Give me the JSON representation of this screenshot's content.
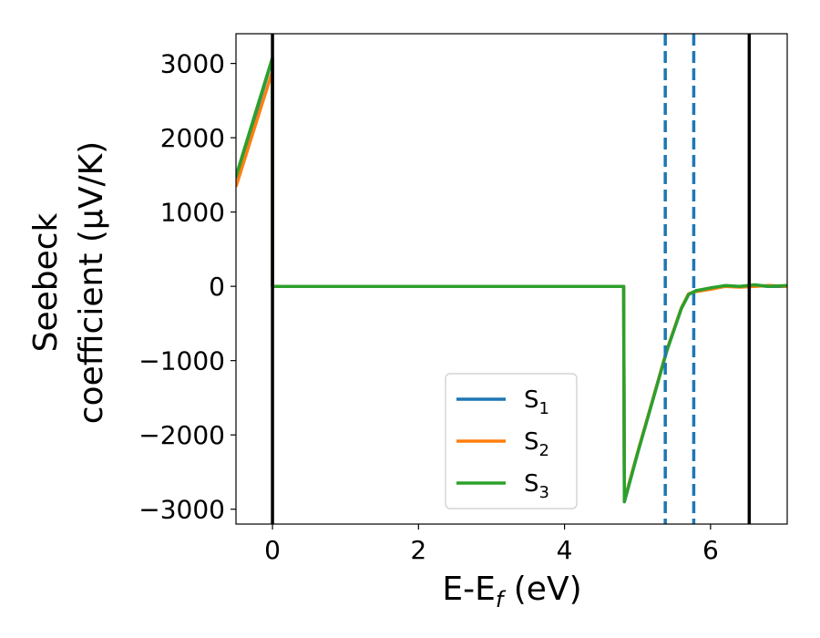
{
  "chart_data": {
    "type": "line",
    "xlabel": "E-E",
    "xlabel_sub": "f",
    "xlabel_unit": " (eV)",
    "ylabel_line1": "Seebeck",
    "ylabel_line2": "coefficient  (μV/K)",
    "xlim": [
      -0.5,
      7.05
    ],
    "ylim": [
      -3200,
      3400
    ],
    "xticks": [
      0,
      2,
      4,
      6
    ],
    "xtick_labels": [
      "0",
      "2",
      "4",
      "6"
    ],
    "yticks": [
      -3000,
      -2000,
      -1000,
      0,
      1000,
      2000,
      3000
    ],
    "ytick_labels": [
      "−3000",
      "−2000",
      "−1000",
      "0",
      "1000",
      "2000",
      "3000"
    ],
    "vlines_solid": [
      0.0,
      6.53
    ],
    "vlines_dashed": [
      5.38,
      5.77
    ],
    "legend_position": "lower-center",
    "series": [
      {
        "name": "S",
        "name_sub": "1",
        "color": "#1f77b4",
        "x": [
          -0.5,
          -0.25,
          0.0,
          0.0,
          0.5,
          1.0,
          2.0,
          3.0,
          4.0,
          4.8,
          4.81,
          4.82,
          5.0,
          5.2,
          5.4,
          5.6,
          5.7,
          5.8,
          6.0,
          6.2,
          6.4,
          6.6,
          6.8,
          7.05
        ],
        "y": [
          1450,
          2250,
          3070,
          0,
          0,
          0,
          0,
          0,
          0,
          0,
          0,
          -2900,
          -2250,
          -1560,
          -870,
          -300,
          -110,
          -60,
          -30,
          0,
          0,
          10,
          0,
          0
        ]
      },
      {
        "name": "S",
        "name_sub": "2",
        "color": "#ff7f0e",
        "x": [
          -0.5,
          -0.25,
          0.0,
          0.0,
          0.5,
          1.0,
          2.0,
          3.0,
          4.0,
          4.8,
          4.81,
          4.82,
          5.0,
          5.2,
          5.4,
          5.6,
          5.7,
          5.8,
          6.0,
          6.2,
          6.4,
          6.6,
          6.8,
          7.05
        ],
        "y": [
          1340,
          2120,
          2900,
          0,
          0,
          0,
          0,
          0,
          0,
          0,
          0,
          -2880,
          -2240,
          -1550,
          -860,
          -290,
          -100,
          -70,
          -40,
          0,
          -10,
          0,
          10,
          0
        ]
      },
      {
        "name": "S",
        "name_sub": "3",
        "color": "#2ca02c",
        "x": [
          -0.5,
          -0.25,
          0.0,
          0.0,
          0.5,
          1.0,
          2.0,
          3.0,
          4.0,
          4.8,
          4.81,
          4.82,
          5.0,
          5.2,
          5.4,
          5.6,
          5.7,
          5.8,
          6.0,
          6.2,
          6.4,
          6.6,
          6.8,
          7.05
        ],
        "y": [
          1480,
          2280,
          3080,
          0,
          0,
          0,
          0,
          0,
          0,
          0,
          0,
          -2900,
          -2250,
          -1560,
          -870,
          -300,
          -110,
          -60,
          -20,
          10,
          0,
          20,
          0,
          10
        ]
      }
    ]
  }
}
